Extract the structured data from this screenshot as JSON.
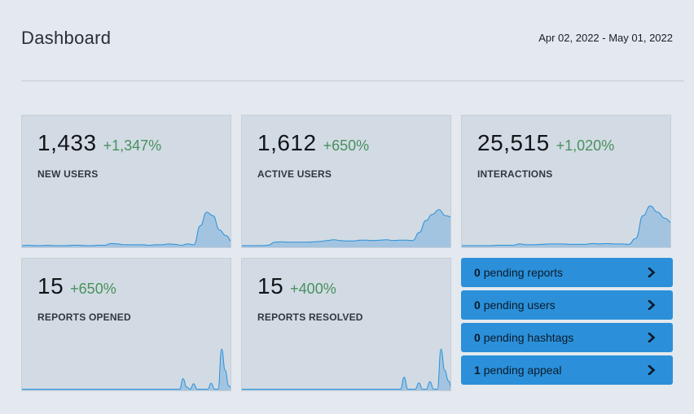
{
  "header": {
    "title": "Dashboard",
    "date_range": "Apr 02, 2022 - May 01, 2022"
  },
  "metrics": [
    {
      "value": "1,433",
      "change": "+1,347%",
      "label": "NEW USERS"
    },
    {
      "value": "1,612",
      "change": "+650%",
      "label": "ACTIVE USERS"
    },
    {
      "value": "25,515",
      "change": "+1,020%",
      "label": "INTERACTIONS"
    },
    {
      "value": "15",
      "change": "+650%",
      "label": "REPORTS OPENED"
    },
    {
      "value": "15",
      "change": "+400%",
      "label": "REPORTS RESOLVED"
    }
  ],
  "pending": [
    {
      "count": "0",
      "label": "pending reports",
      "icon": "chevron-right-icon"
    },
    {
      "count": "0",
      "label": "pending users",
      "icon": "chevron-right-icon"
    },
    {
      "count": "0",
      "label": "pending hashtags",
      "icon": "chevron-right-icon"
    },
    {
      "count": "1",
      "label": "pending appeal",
      "icon": "chevron-right-icon"
    }
  ],
  "colors": {
    "background": "#e3e9ef",
    "card": "#d2dbe3",
    "positive_change": "#4a905f",
    "sparkline_stroke": "#2b90d9",
    "sparkline_fill": "#a3c4e0",
    "pending_button": "#2b90d9"
  },
  "sparklines": [
    [
      0.01,
      0.02,
      0.01,
      0.01,
      0.02,
      0.01,
      0.01,
      0.01,
      0.02,
      0.02,
      0.01,
      0.01,
      0.02,
      0.02,
      0.06,
      0.05,
      0.03,
      0.03,
      0.03,
      0.03,
      0.02,
      0.03,
      0.03,
      0.05,
      0.04,
      0.02,
      0.05,
      0.03,
      0.48,
      0.8,
      0.72,
      0.38,
      0.25,
      0.1
    ],
    [
      0.01,
      0.01,
      0.01,
      0.01,
      0.02,
      0.09,
      0.1,
      0.09,
      0.09,
      0.09,
      0.09,
      0.1,
      0.11,
      0.13,
      0.15,
      0.13,
      0.12,
      0.12,
      0.14,
      0.14,
      0.13,
      0.14,
      0.15,
      0.13,
      0.14,
      0.14,
      0.13,
      0.32,
      0.6,
      0.75,
      0.86,
      0.72,
      0.68
    ],
    [
      0.01,
      0.01,
      0.01,
      0.01,
      0.01,
      0.02,
      0.02,
      0.02,
      0.05,
      0.03,
      0.03,
      0.04,
      0.05,
      0.05,
      0.05,
      0.04,
      0.04,
      0.04,
      0.06,
      0.05,
      0.06,
      0.05,
      0.05,
      0.04,
      0.18,
      0.72,
      0.95,
      0.8,
      0.66,
      0.55
    ],
    [
      0.0,
      0.0,
      0.0,
      0.0,
      0.0,
      0.0,
      0.0,
      0.0,
      0.0,
      0.0,
      0.0,
      0.0,
      0.0,
      0.0,
      0.0,
      0.0,
      0.0,
      0.0,
      0.0,
      0.0,
      0.0,
      0.0,
      0.0,
      0.0,
      0.0,
      0.0,
      0.0,
      0.0,
      0.0,
      0.0,
      0.0,
      0.0,
      0.0,
      0.0,
      0.0,
      0.0,
      0.0,
      0.0,
      0.0,
      0.0,
      0.0,
      0.0,
      0.0,
      0.0,
      0.0,
      0.0,
      0.25,
      0.05,
      0.0,
      0.13,
      0.0,
      0.0,
      0.0,
      0.0,
      0.14,
      0.0,
      0.0,
      0.95,
      0.45,
      0.08,
      0.0
    ],
    [
      0.0,
      0.0,
      0.0,
      0.0,
      0.0,
      0.0,
      0.0,
      0.0,
      0.0,
      0.0,
      0.0,
      0.0,
      0.0,
      0.0,
      0.0,
      0.0,
      0.0,
      0.0,
      0.0,
      0.0,
      0.0,
      0.0,
      0.0,
      0.0,
      0.0,
      0.0,
      0.0,
      0.0,
      0.0,
      0.0,
      0.0,
      0.0,
      0.0,
      0.0,
      0.0,
      0.0,
      0.0,
      0.0,
      0.0,
      0.0,
      0.0,
      0.0,
      0.0,
      0.0,
      0.28,
      0.0,
      0.0,
      0.0,
      0.15,
      0.0,
      0.0,
      0.18,
      0.0,
      0.0,
      0.95,
      0.45,
      0.2,
      0.0
    ]
  ]
}
